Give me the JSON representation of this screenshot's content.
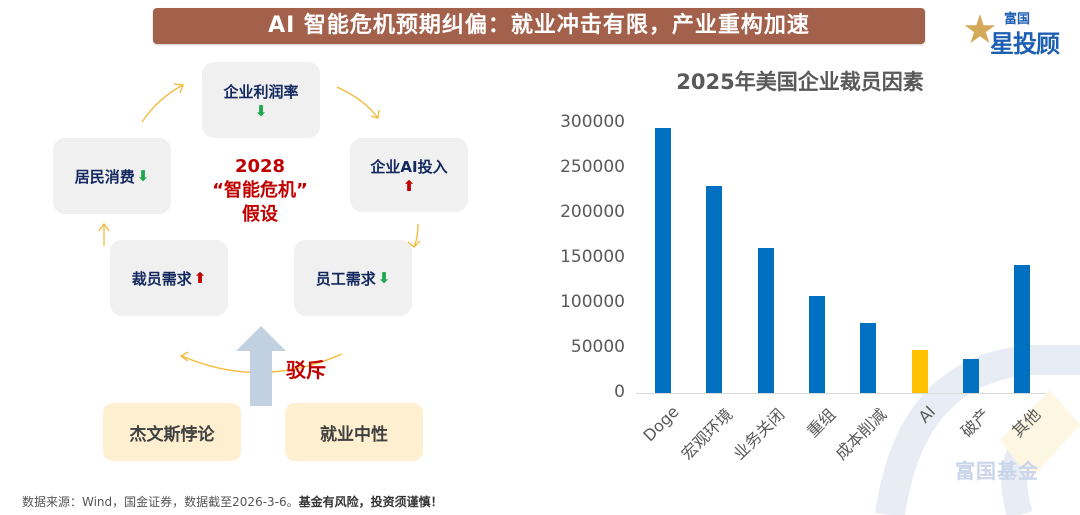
{
  "header": {
    "title": "AI 智能危机预期纠偏：就业冲击有限，产业重构加速"
  },
  "logo": {
    "top": "富国",
    "main": "星投顾",
    "icon": "star-icon"
  },
  "diagram": {
    "center": {
      "line1": "2028",
      "line2": "“智能危机”",
      "line3": "假设"
    },
    "nodes": [
      {
        "label": "企业利润率",
        "direction": "down"
      },
      {
        "label": "企业AI投入",
        "direction": "up"
      },
      {
        "label": "员工需求",
        "direction": "down"
      },
      {
        "label": "裁员需求",
        "direction": "up"
      },
      {
        "label": "居民消费",
        "direction": "down"
      }
    ],
    "arrow_symbols": {
      "up": "⬆",
      "down": "⬇"
    },
    "reject_label": "驳斥",
    "counter_args": [
      "杰文斯悖论",
      "就业中性"
    ]
  },
  "footer": {
    "source": "数据来源：Wind，国金证券，数据截至2026-3-6。",
    "warning": "基金有风险，投资须谨慎！"
  },
  "watermark": "富国基金",
  "chart_data": {
    "type": "bar",
    "title": "2025年美国企业裁员因素",
    "categories": [
      "Doge",
      "宏观环境",
      "业务关闭",
      "重组",
      "成本削减",
      "AI",
      "破产",
      "其他"
    ],
    "values": [
      294000,
      230000,
      161000,
      108000,
      78000,
      48000,
      38000,
      142000
    ],
    "colors": [
      "#0070c0",
      "#0070c0",
      "#0070c0",
      "#0070c0",
      "#0070c0",
      "#ffc000",
      "#0070c0",
      "#0070c0"
    ],
    "yticks": [
      "300000",
      "250000",
      "200000",
      "150000",
      "100000",
      "50000",
      "0"
    ],
    "ylim": [
      0,
      300000
    ],
    "xlabel": "",
    "ylabel": "",
    "grid": false,
    "legend": null
  }
}
